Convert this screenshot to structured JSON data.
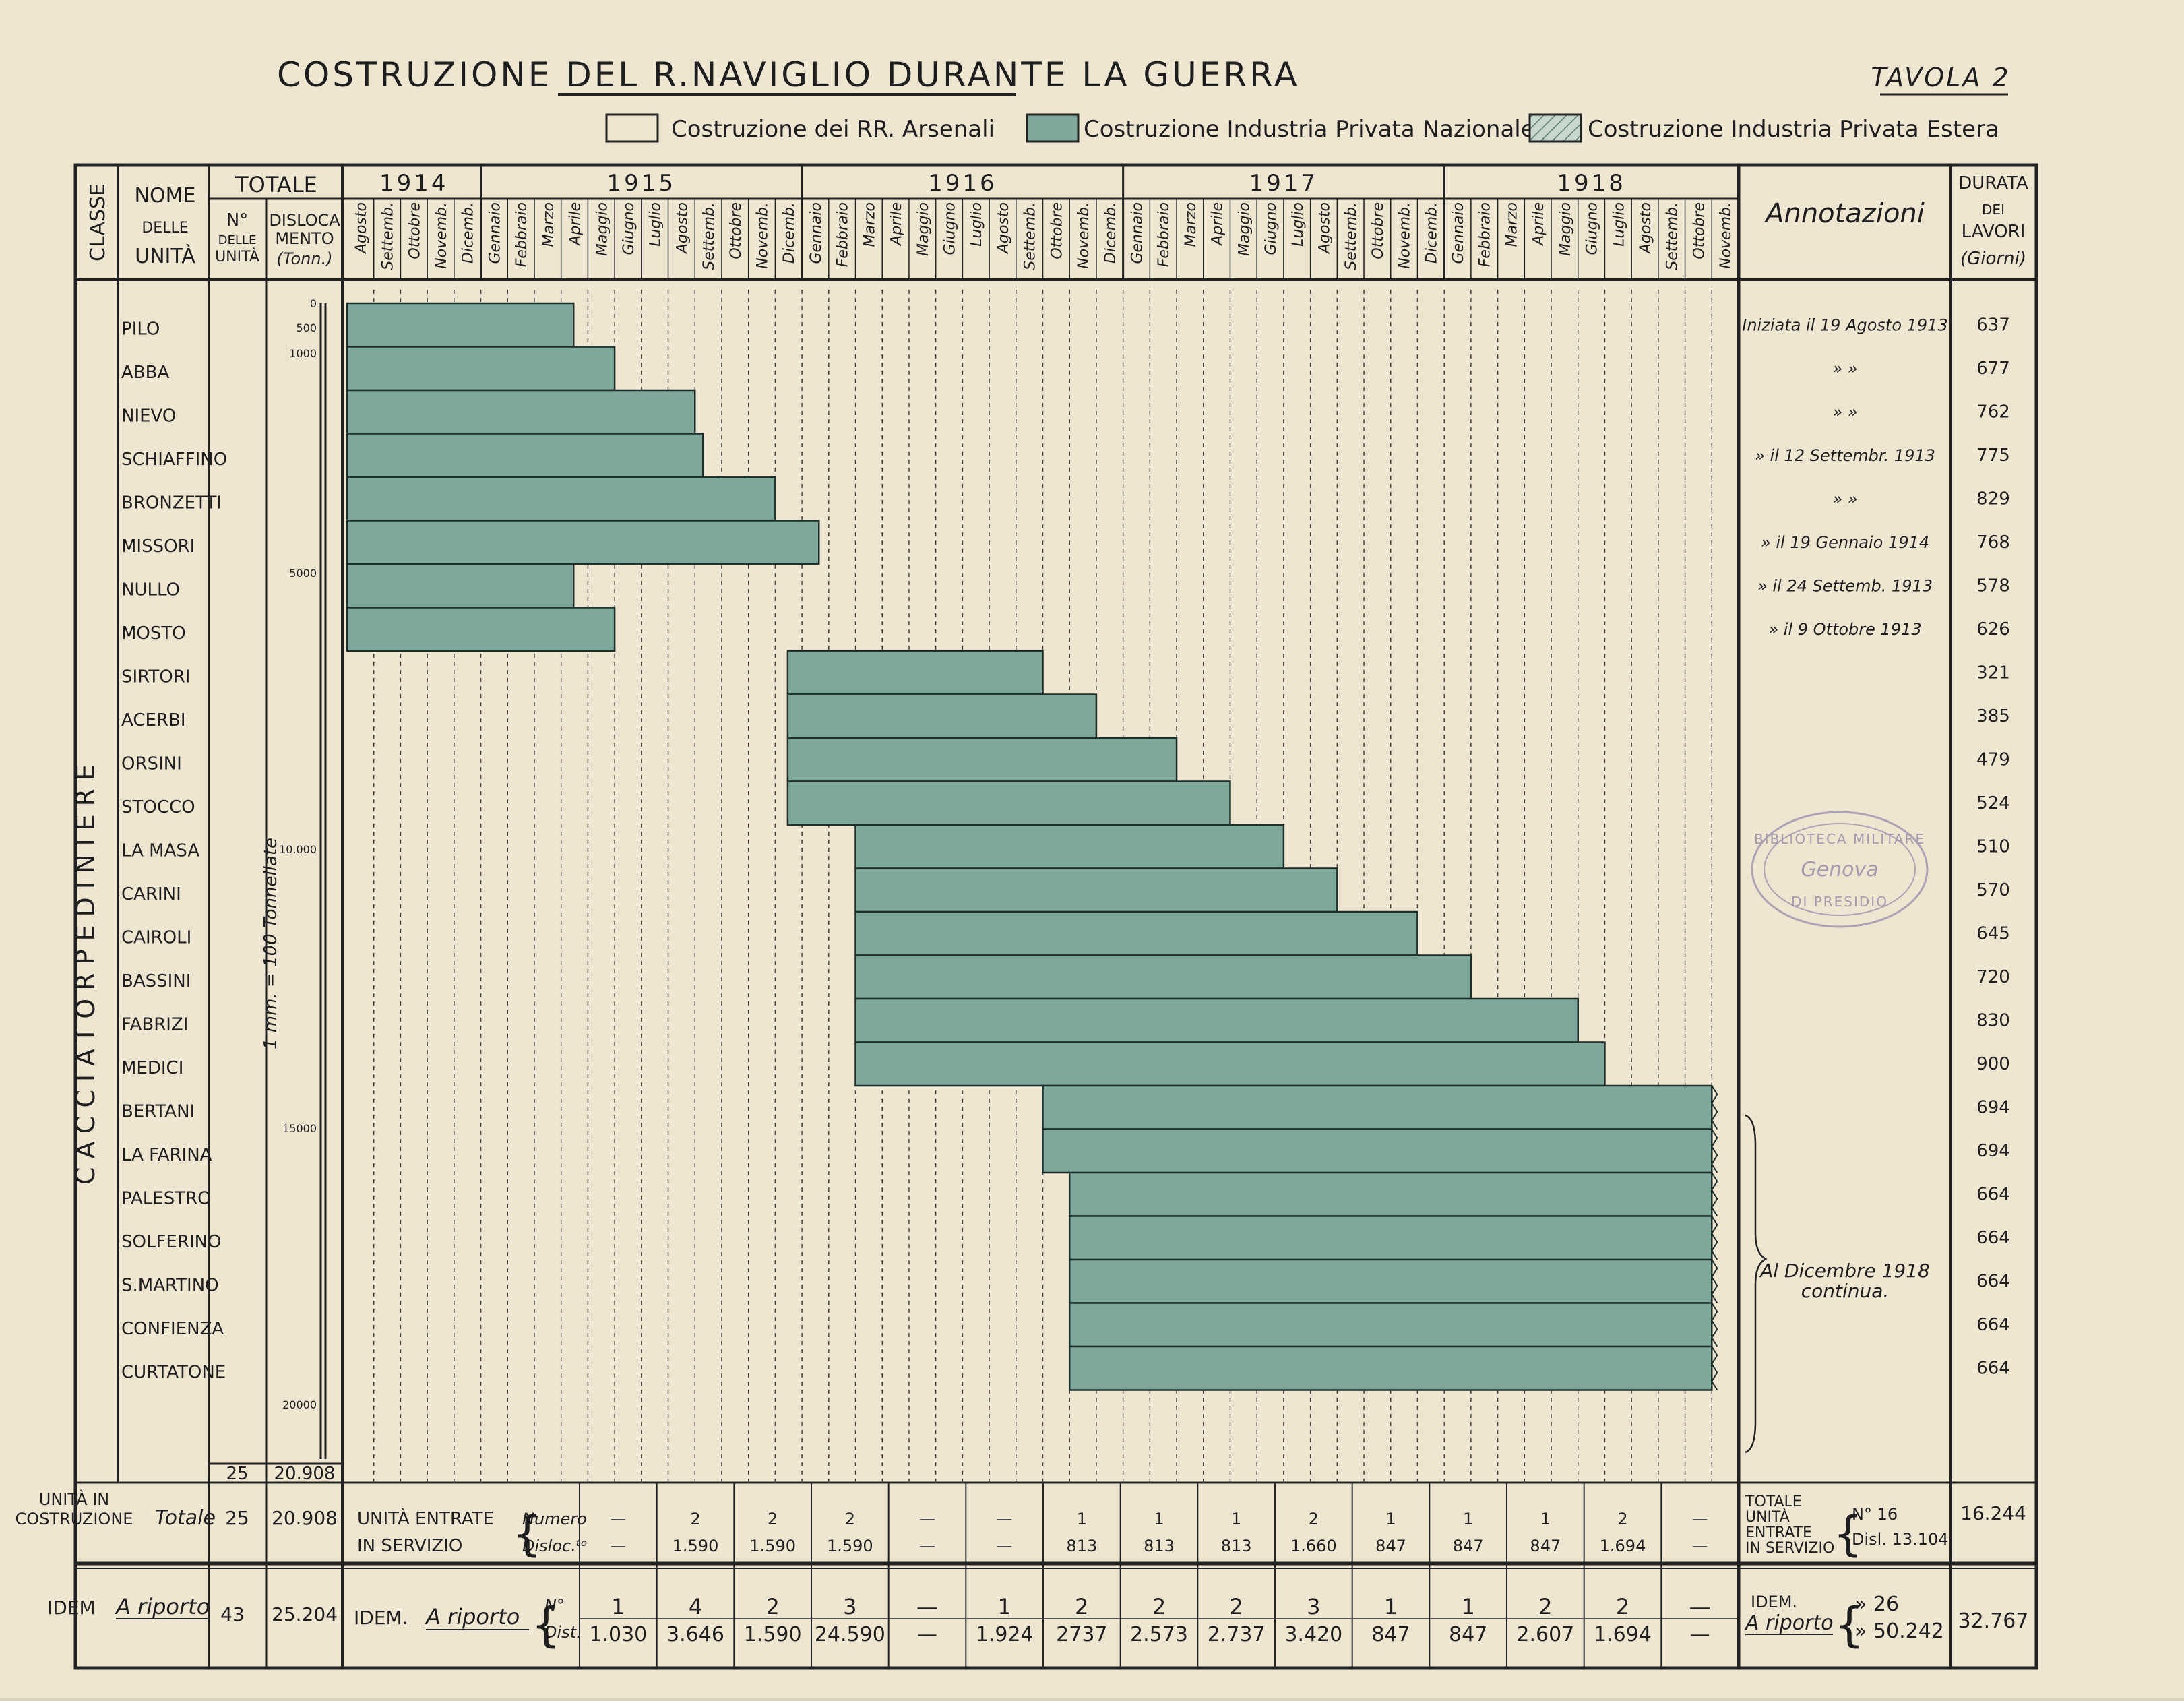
{
  "header": {
    "title": "COSTRUZIONE DEL R.NAVIGLIO DURANTE LA GUERRA",
    "plate": "TAVOLA 2"
  },
  "legend": [
    {
      "label": "Costruzione dei RR. Arsenali",
      "fill": "#efe6d2",
      "pattern": "none"
    },
    {
      "label": "Costruzione Industria Privata Nazionale",
      "fill": "#7fa89c",
      "pattern": "none"
    },
    {
      "label": "Costruzione Industria Privata Estera",
      "fill": "#b9ccc3",
      "pattern": "hatch"
    }
  ],
  "columns": {
    "classe": "CLASSE",
    "nome": [
      "NOME",
      "DELLE",
      "UNITÀ"
    ],
    "totale": "TOTALE",
    "numero": [
      "N°",
      "DELLE",
      "UNITÀ"
    ],
    "dislocamento": [
      "DISLOCA",
      "MENTO",
      "(Tonn.)"
    ],
    "annotazioni": "Annotazioni",
    "durata": [
      "DURATA",
      "DEI",
      "LAVORI",
      "(Giorni)"
    ]
  },
  "class_label": "CACCIATORPEDINIERE",
  "scale": {
    "ticks": [
      "0",
      "500",
      "1000",
      "5000",
      "10.000",
      "15000",
      "20000"
    ],
    "note": "1 mm. = 100 Tonnellate"
  },
  "chart_data": {
    "type": "gantt",
    "years": [
      "1914",
      "1915",
      "1916",
      "1917",
      "1918"
    ],
    "months": [
      "Agosto",
      "Settemb.",
      "Ottobre",
      "Novemb.",
      "Dicemb.",
      "Gennaio",
      "Febbraio",
      "Marzo",
      "Aprile",
      "Maggio",
      "Giugno",
      "Luglio",
      "Agosto",
      "Settemb.",
      "Ottobre",
      "Novemb.",
      "Dicemb.",
      "Gennaio",
      "Febbraio",
      "Marzo",
      "Aprile",
      "Maggio",
      "Giugno",
      "Luglio",
      "Agosto",
      "Settemb.",
      "Ottobre",
      "Novemb.",
      "Dicemb.",
      "Gennaio",
      "Febbraio",
      "Marzo",
      "Aprile",
      "Maggio",
      "Giugno",
      "Luglio",
      "Agosto",
      "Settemb.",
      "Ottobre",
      "Novemb.",
      "Dicemb.",
      "Gennaio",
      "Febbraio",
      "Marzo",
      "Aprile",
      "Maggio",
      "Giugno",
      "Luglio",
      "Agosto",
      "Settemb.",
      "Ottobre",
      "Novemb."
    ],
    "x_range": [
      "1914-08",
      "1918-11"
    ],
    "series_category": "Costruzione Industria Privata Nazionale",
    "units": [
      {
        "name": "PILO",
        "start": "1914-08",
        "end": "1915-04-15",
        "annotation": "Iniziata il 19 Agosto 1913",
        "durata": "637"
      },
      {
        "name": "ABBA",
        "start": "1914-08",
        "end": "1915-06",
        "annotation": "»         »",
        "durata": "677"
      },
      {
        "name": "NIEVO",
        "start": "1914-08",
        "end": "1915-09",
        "annotation": "»         »",
        "durata": "762"
      },
      {
        "name": "SCHIAFFINO",
        "start": "1914-08",
        "end": "1915-09-10",
        "annotation": "»    il 12 Settembr. 1913",
        "durata": "775"
      },
      {
        "name": "BRONZETTI",
        "start": "1914-08",
        "end": "1915-12",
        "annotation": "»         »",
        "durata": "829"
      },
      {
        "name": "MISSORI",
        "start": "1914-08",
        "end": "1916-01-20",
        "annotation": "»  il 19 Gennaio  1914",
        "durata": "768"
      },
      {
        "name": "NULLO",
        "start": "1914-08",
        "end": "1915-04-15",
        "annotation": "»  il 24 Settemb. 1913",
        "durata": "578"
      },
      {
        "name": "MOSTO",
        "start": "1914-08",
        "end": "1915-06",
        "annotation": "»  il 9 Ottobre  1913",
        "durata": "626"
      },
      {
        "name": "SIRTORI",
        "start": "1915-12-15",
        "end": "1916-10",
        "annotation": "",
        "durata": "321"
      },
      {
        "name": "ACERBI",
        "start": "1915-12-15",
        "end": "1916-12",
        "annotation": "",
        "durata": "385"
      },
      {
        "name": "ORSINI",
        "start": "1915-12-15",
        "end": "1917-03",
        "annotation": "",
        "durata": "479"
      },
      {
        "name": "STOCCO",
        "start": "1915-12-15",
        "end": "1917-05",
        "annotation": "",
        "durata": "524"
      },
      {
        "name": "LA MASA",
        "start": "1916-03",
        "end": "1917-07",
        "annotation": "",
        "durata": "510"
      },
      {
        "name": "CARINI",
        "start": "1916-03",
        "end": "1917-09",
        "annotation": "",
        "durata": "570"
      },
      {
        "name": "CAIROLI",
        "start": "1916-03",
        "end": "1917-12",
        "annotation": "",
        "durata": "645"
      },
      {
        "name": "BASSINI",
        "start": "1916-03",
        "end": "1918-02",
        "annotation": "",
        "durata": "720"
      },
      {
        "name": "FABRIZI",
        "start": "1916-03",
        "end": "1918-06",
        "annotation": "",
        "durata": "830"
      },
      {
        "name": "MEDICI",
        "start": "1916-03",
        "end": "1918-07",
        "annotation": "",
        "durata": "900"
      },
      {
        "name": "BERTANI",
        "start": "1916-10",
        "end": "1918-11",
        "annotation": "",
        "durata": "694",
        "continuing": true
      },
      {
        "name": "LA FARINA",
        "start": "1916-10",
        "end": "1918-11",
        "annotation": "",
        "durata": "694",
        "continuing": true
      },
      {
        "name": "PALESTRO",
        "start": "1916-11",
        "end": "1918-11",
        "annotation": "",
        "durata": "664",
        "continuing": true
      },
      {
        "name": "SOLFERINO",
        "start": "1916-11",
        "end": "1918-11",
        "annotation": "",
        "durata": "664",
        "continuing": true
      },
      {
        "name": "S.MARTINO",
        "start": "1916-11",
        "end": "1918-11",
        "annotation": "",
        "durata": "664",
        "continuing": true
      },
      {
        "name": "CONFIENZA",
        "start": "1916-11",
        "end": "1918-11",
        "annotation": "",
        "durata": "664",
        "continuing": true
      },
      {
        "name": "CURTATONE",
        "start": "1916-11",
        "end": "1918-11",
        "annotation": "",
        "durata": "664",
        "continuing": true
      }
    ]
  },
  "continuing_note": "Al Dicembre 1918 continua.",
  "column_totals": {
    "numero": "25",
    "dislocamento": "20.908"
  },
  "summary": {
    "in_costruzione": {
      "label_line1": "UNITÀ IN",
      "label_line2": "COSTRUZIONE",
      "totale_label": "Totale",
      "numero": "25",
      "dislocamento": "20.908",
      "entrate_line1": "UNITÀ ENTRATE",
      "entrate_line2": "IN SERVIZIO",
      "numero_label": "Numero",
      "disloc_label": "Disloc.ᵗᵒ",
      "numeri": [
        "—",
        "2",
        "2",
        "2",
        "—",
        "—",
        "1",
        "1",
        "1",
        "2",
        "1",
        "1",
        "1",
        "2",
        "—"
      ],
      "dislocamenti": [
        "—",
        "1.590",
        "1.590",
        "1.590",
        "—",
        "—",
        "813",
        "813",
        "813",
        "1.660",
        "847",
        "847",
        "847",
        "1.694",
        "—"
      ],
      "totale_unita": [
        "TOTALE",
        "UNITÀ",
        "ENTRATE",
        "IN SERVIZIO"
      ],
      "totale_numero": "N°  16",
      "totale_disloc": "Disl. 13.104",
      "durata_totale": "16.244"
    },
    "a_riporto": {
      "label": "IDEM",
      "label_it": "A riporto",
      "numero": "43",
      "dislocamento": "25.204",
      "idem_label": "IDEM.",
      "n_label": "N°",
      "dist_label": "Dist.",
      "numeri": [
        "1",
        "4",
        "2",
        "3",
        "—",
        "1",
        "2",
        "2",
        "2",
        "3",
        "1",
        "1",
        "2",
        "2",
        "—"
      ],
      "dislocamenti": [
        "1.030",
        "3.646",
        "1.590",
        "24.590",
        "—",
        "1.924",
        "2737",
        "2.573",
        "2.737",
        "3.420",
        "847",
        "847",
        "2.607",
        "1.694",
        "—"
      ],
      "totale_idem": "IDEM.",
      "totale_numero": "» 26",
      "totale_disloc": "» 50.242",
      "durata_totale": "32.767"
    }
  },
  "stamp": [
    "BIBLIOTECA MILITARE",
    "Genova",
    "DI PRESIDIO"
  ]
}
